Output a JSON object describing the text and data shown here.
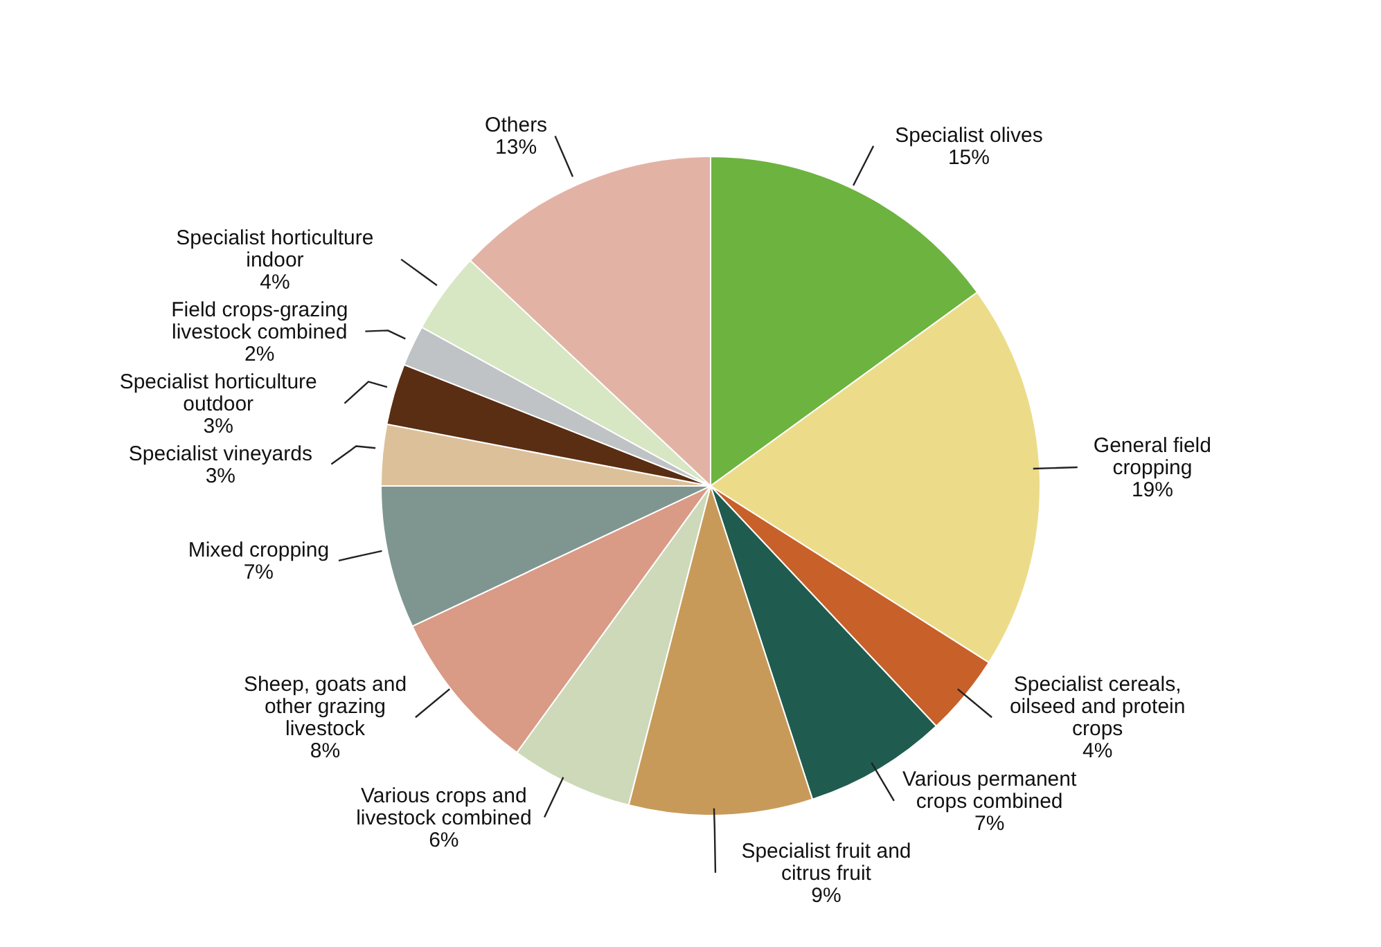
{
  "chart_data": {
    "type": "pie",
    "categories": [
      "Specialist olives",
      "General field\ncropping",
      "Specialist cereals,\noilseed and protein\ncrops",
      "Various permanent\ncrops combined",
      "Specialist fruit and\ncitrus fruit",
      "Various crops and\nlivestock combined",
      "Sheep, goats and\nother grazing\nlivestock",
      "Mixed cropping",
      "Specialist vineyards",
      "Specialist horticulture\noutdoor",
      "Field crops-grazing\nlivestock combined",
      "Specialist horticulture\nindoor",
      "Others"
    ],
    "values": [
      15,
      19,
      4,
      7,
      9,
      6,
      8,
      7,
      3,
      3,
      2,
      4,
      13
    ],
    "value_labels": [
      "15%",
      "19%",
      "4%",
      "7%",
      "9%",
      "6%",
      "8%",
      "7%",
      "3%",
      "3%",
      "2%",
      "4%",
      "13%"
    ],
    "colors": [
      "#6db33f",
      "#ecdc8a",
      "#c8602a",
      "#1f5c4f",
      "#c89a5a",
      "#cdd9b8",
      "#d99a86",
      "#7f9690",
      "#dcc09a",
      "#5a2e12",
      "#bfc3c6",
      "#d7e6c3",
      "#e2b3a5"
    ]
  }
}
